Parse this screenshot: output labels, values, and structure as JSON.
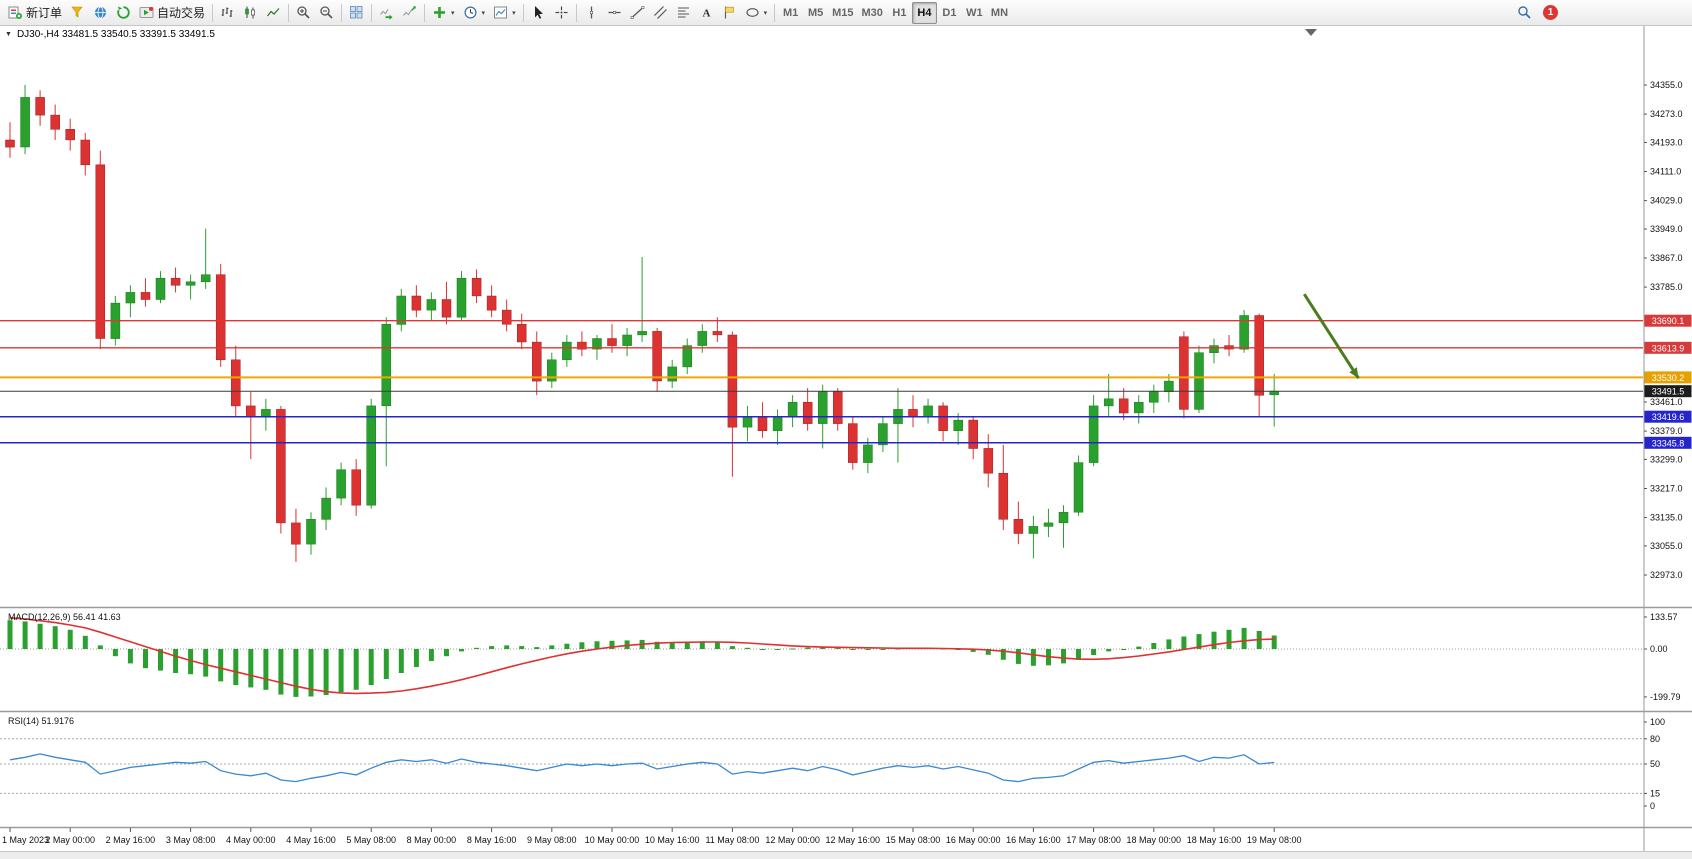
{
  "toolbar": {
    "groups": [
      {
        "items": [
          {
            "name": "new-order-button",
            "icon": "new-order",
            "label": "新订单"
          },
          {
            "name": "market-watch-button",
            "icon": "funnel"
          },
          {
            "name": "web-community-button",
            "icon": "globe"
          },
          {
            "name": "refresh-button",
            "icon": "refresh"
          },
          {
            "name": "autotrade-button",
            "icon": "autotrade",
            "label": "自动交易"
          }
        ]
      },
      {
        "items": [
          {
            "name": "bar-chart-button",
            "icon": "bars"
          },
          {
            "name": "candlestick-chart-button",
            "icon": "candles"
          },
          {
            "name": "line-chart-button",
            "icon": "line-chart"
          }
        ]
      },
      {
        "items": [
          {
            "name": "zoom-in-button",
            "icon": "zoom-in"
          },
          {
            "name": "zoom-out-button",
            "icon": "zoom-out"
          }
        ]
      },
      {
        "items": [
          {
            "name": "tile-windows-button",
            "icon": "tile-windows"
          }
        ]
      },
      {
        "items": [
          {
            "name": "auto-scroll-button",
            "icon": "auto-scroll"
          },
          {
            "name": "chart-shift-button",
            "icon": "chart-shift"
          }
        ]
      },
      {
        "items": [
          {
            "name": "indicators-button",
            "icon": "indicator-add",
            "dropdown": true
          },
          {
            "name": "periods-button",
            "icon": "clock",
            "dropdown": true
          },
          {
            "name": "templates-button",
            "icon": "template",
            "dropdown": true
          }
        ]
      },
      {
        "items": [
          {
            "name": "cursor-button",
            "icon": "cursor"
          },
          {
            "name": "crosshair-button",
            "icon": "crosshair"
          }
        ]
      },
      {
        "items": [
          {
            "name": "vertical-line-button",
            "icon": "vertical-line"
          },
          {
            "name": "horizontal-line-button",
            "icon": "horizontal-line"
          },
          {
            "name": "trendline-button",
            "icon": "trendline"
          },
          {
            "name": "channel-button",
            "icon": "channel"
          },
          {
            "name": "fibonacci-button",
            "icon": "fibonacci"
          },
          {
            "name": "text-button",
            "icon": "text"
          },
          {
            "name": "label-button",
            "icon": "label"
          },
          {
            "name": "shapes-button",
            "icon": "shapes",
            "dropdown": true
          }
        ]
      },
      {
        "items": [
          {
            "name": "timeframe-m1",
            "label": "M1",
            "tf": true
          },
          {
            "name": "timeframe-m5",
            "label": "M5",
            "tf": true
          },
          {
            "name": "timeframe-m15",
            "label": "M15",
            "tf": true
          },
          {
            "name": "timeframe-m30",
            "label": "M30",
            "tf": true
          },
          {
            "name": "timeframe-h1",
            "label": "H1",
            "tf": true
          },
          {
            "name": "timeframe-h4",
            "label": "H4",
            "tf": true,
            "active": true
          },
          {
            "name": "timeframe-d1",
            "label": "D1",
            "tf": true
          },
          {
            "name": "timeframe-w1",
            "label": "W1",
            "tf": true
          },
          {
            "name": "timeframe-mn",
            "label": "MN",
            "tf": true
          }
        ]
      }
    ],
    "notification_count": "1"
  },
  "chart": {
    "symbol_line": "DJ30-,H4 33481.5 33540.5 33391.5 33491.5"
  },
  "colors": {
    "candle_up": "#2aa12e",
    "candle_down": "#dc3232",
    "macd_histogram": "#2aa12e",
    "macd_signal": "#e03131",
    "rsi_line": "#3a87d2",
    "arrow": "#4a7d1e",
    "notification_badge": "#e03434"
  },
  "chart_data": {
    "type": "candlestick",
    "symbol": "DJ30-",
    "timeframe": "H4",
    "window_ohlc": {
      "open": 33481.5,
      "high": 33540.5,
      "low": 33391.5,
      "close": 33491.5
    },
    "price_axis_ticks": [
      "34355.0",
      "34273.0",
      "34193.0",
      "34111.0",
      "34029.0",
      "33949.0",
      "33867.0",
      "33785.0",
      "33461.0",
      "33379.0",
      "33299.0",
      "33217.0",
      "33135.0",
      "33055.0",
      "32973.0"
    ],
    "price_badges": [
      {
        "label": "33690.1",
        "price": 33690.1,
        "color": "#d63a3a"
      },
      {
        "label": "33613.9",
        "price": 33613.9,
        "color": "#d63a3a"
      },
      {
        "label": "33530.2",
        "price": 33530.2,
        "color": "#e8a000"
      },
      {
        "label": "33491.5",
        "price": 33491.5,
        "color": "#1c1c1c"
      },
      {
        "label": "33419.6",
        "price": 33419.6,
        "color": "#2525cc"
      },
      {
        "label": "33345.8",
        "price": 33345.8,
        "color": "#2525cc"
      }
    ],
    "hlines": [
      {
        "label": "33690.1",
        "price": 33690.1,
        "color": "#e23434",
        "width": 1.3
      },
      {
        "label": "33613.9",
        "price": 33613.9,
        "color": "#e23434",
        "width": 1.3
      },
      {
        "label": "33530.2",
        "price": 33530.2,
        "color": "#f0a800",
        "width": 2
      },
      {
        "label": "33491.5",
        "price": 33491.5,
        "color": "#3c3c3c",
        "width": 1
      },
      {
        "label": "33419.6",
        "price": 33419.6,
        "color": "#2525cc",
        "width": 1.5
      },
      {
        "label": "33345.8",
        "price": 33345.8,
        "color": "#2525cc",
        "width": 1.5
      }
    ],
    "time_labels": [
      "1 May 2023",
      "2 May 00:00",
      "2 May 16:00",
      "3 May 08:00",
      "4 May 00:00",
      "4 May 16:00",
      "5 May 08:00",
      "8 May 00:00",
      "8 May 16:00",
      "9 May 08:00",
      "10 May 00:00",
      "10 May 16:00",
      "11 May 08:00",
      "12 May 00:00",
      "12 May 16:00",
      "15 May 08:00",
      "16 May 00:00",
      "16 May 16:00",
      "17 May 08:00",
      "18 May 00:00",
      "18 May 16:00",
      "19 May 08:00"
    ],
    "candles": [
      [
        34200,
        34250,
        34150,
        34180
      ],
      [
        34180,
        34355,
        34160,
        34320
      ],
      [
        34320,
        34340,
        34240,
        34270
      ],
      [
        34270,
        34300,
        34200,
        34230
      ],
      [
        34230,
        34260,
        34170,
        34200
      ],
      [
        34200,
        34220,
        34100,
        34130
      ],
      [
        34130,
        34170,
        33610,
        33640
      ],
      [
        33640,
        33760,
        33620,
        33740
      ],
      [
        33740,
        33790,
        33700,
        33770
      ],
      [
        33770,
        33810,
        33730,
        33750
      ],
      [
        33750,
        33830,
        33740,
        33810
      ],
      [
        33810,
        33840,
        33770,
        33790
      ],
      [
        33790,
        33820,
        33750,
        33800
      ],
      [
        33800,
        33950,
        33780,
        33820
      ],
      [
        33820,
        33850,
        33560,
        33580
      ],
      [
        33580,
        33620,
        33420,
        33450
      ],
      [
        33450,
        33490,
        33300,
        33420
      ],
      [
        33420,
        33470,
        33380,
        33440
      ],
      [
        33440,
        33450,
        33090,
        33120
      ],
      [
        33120,
        33160,
        33010,
        33060
      ],
      [
        33060,
        33150,
        33030,
        33130
      ],
      [
        33130,
        33220,
        33100,
        33190
      ],
      [
        33190,
        33290,
        33170,
        33270
      ],
      [
        33270,
        33300,
        33140,
        33170
      ],
      [
        33170,
        33470,
        33160,
        33450
      ],
      [
        33450,
        33700,
        33280,
        33680
      ],
      [
        33680,
        33780,
        33660,
        33760
      ],
      [
        33760,
        33790,
        33700,
        33720
      ],
      [
        33720,
        33770,
        33690,
        33750
      ],
      [
        33750,
        33800,
        33680,
        33700
      ],
      [
        33700,
        33830,
        33690,
        33810
      ],
      [
        33810,
        33835,
        33740,
        33760
      ],
      [
        33760,
        33790,
        33700,
        33720
      ],
      [
        33720,
        33750,
        33660,
        33680
      ],
      [
        33680,
        33710,
        33610,
        33630
      ],
      [
        33630,
        33660,
        33480,
        33520
      ],
      [
        33520,
        33600,
        33500,
        33580
      ],
      [
        33580,
        33650,
        33560,
        33630
      ],
      [
        33630,
        33660,
        33590,
        33610
      ],
      [
        33610,
        33650,
        33580,
        33640
      ],
      [
        33640,
        33680,
        33600,
        33620
      ],
      [
        33620,
        33670,
        33590,
        33650
      ],
      [
        33650,
        33870,
        33630,
        33660
      ],
      [
        33660,
        33670,
        33490,
        33520
      ],
      [
        33520,
        33580,
        33500,
        33560
      ],
      [
        33560,
        33640,
        33540,
        33620
      ],
      [
        33620,
        33680,
        33600,
        33660
      ],
      [
        33660,
        33700,
        33630,
        33650
      ],
      [
        33650,
        33660,
        33250,
        33390
      ],
      [
        33390,
        33450,
        33350,
        33420
      ],
      [
        33420,
        33460,
        33360,
        33380
      ],
      [
        33380,
        33440,
        33340,
        33420
      ],
      [
        33420,
        33480,
        33390,
        33460
      ],
      [
        33460,
        33500,
        33380,
        33400
      ],
      [
        33400,
        33510,
        33330,
        33490
      ],
      [
        33490,
        33500,
        33380,
        33400
      ],
      [
        33400,
        33420,
        33270,
        33290
      ],
      [
        33290,
        33360,
        33260,
        33340
      ],
      [
        33340,
        33420,
        33320,
        33400
      ],
      [
        33400,
        33500,
        33290,
        33440
      ],
      [
        33440,
        33480,
        33390,
        33420
      ],
      [
        33420,
        33470,
        33400,
        33450
      ],
      [
        33450,
        33460,
        33350,
        33380
      ],
      [
        33380,
        33430,
        33340,
        33410
      ],
      [
        33410,
        33420,
        33300,
        33330
      ],
      [
        33330,
        33370,
        33220,
        33260
      ],
      [
        33260,
        33340,
        33100,
        33130
      ],
      [
        33130,
        33180,
        33060,
        33090
      ],
      [
        33090,
        33140,
        33020,
        33110
      ],
      [
        33110,
        33160,
        33080,
        33120
      ],
      [
        33120,
        33170,
        33050,
        33150
      ],
      [
        33150,
        33310,
        33140,
        33290
      ],
      [
        33290,
        33480,
        33280,
        33450
      ],
      [
        33450,
        33540,
        33420,
        33470
      ],
      [
        33470,
        33500,
        33410,
        33430
      ],
      [
        33430,
        33480,
        33400,
        33460
      ],
      [
        33460,
        33510,
        33430,
        33490
      ],
      [
        33490,
        33540,
        33460,
        33520
      ],
      [
        33645,
        33660,
        33415,
        33440
      ],
      [
        33440,
        33620,
        33430,
        33600
      ],
      [
        33600,
        33640,
        33570,
        33620
      ],
      [
        33620,
        33650,
        33590,
        33610
      ],
      [
        33610,
        33720,
        33600,
        33705
      ],
      [
        33705,
        33710,
        33420,
        33480
      ],
      [
        33481.5,
        33540.5,
        33391.5,
        33491.5
      ]
    ],
    "macd": {
      "name": "MACD(12,26,9)",
      "values": "56.41 41.63",
      "axis_ticks": [
        "133.57",
        "0.00",
        "-199.79"
      ],
      "histogram": [
        120,
        115,
        105,
        95,
        80,
        55,
        15,
        -30,
        -60,
        -80,
        -90,
        -100,
        -105,
        -115,
        -135,
        -150,
        -160,
        -170,
        -190,
        -199.79,
        -198,
        -192,
        -180,
        -170,
        -150,
        -125,
        -100,
        -75,
        -50,
        -30,
        -10,
        5,
        12,
        15,
        12,
        8,
        15,
        22,
        28,
        32,
        34,
        36,
        38,
        30,
        28,
        30,
        32,
        30,
        12,
        5,
        0,
        -2,
        2,
        6,
        10,
        8,
        0,
        -4,
        -3,
        2,
        4,
        5,
        2,
        -4,
        -12,
        -24,
        -45,
        -62,
        -70,
        -68,
        -60,
        -45,
        -25,
        -10,
        0,
        10,
        25,
        40,
        52,
        62,
        72,
        80,
        88,
        75,
        56.41
      ],
      "signal": [
        130,
        125,
        118,
        110,
        100,
        88,
        70,
        50,
        30,
        10,
        -10,
        -30,
        -48,
        -65,
        -80,
        -95,
        -110,
        -125,
        -140,
        -155,
        -168,
        -178,
        -183,
        -185,
        -184,
        -181,
        -175,
        -166,
        -155,
        -142,
        -128,
        -112,
        -95,
        -78,
        -62,
        -47,
        -33,
        -20,
        -9,
        0,
        8,
        15,
        20,
        24,
        27,
        28,
        29,
        29,
        28,
        25,
        21,
        17,
        13,
        10,
        8,
        7,
        6,
        5,
        4,
        3,
        3,
        3,
        2,
        1,
        -1,
        -4,
        -9,
        -16,
        -24,
        -32,
        -38,
        -42,
        -43,
        -41,
        -36,
        -29,
        -21,
        -12,
        -2,
        8,
        18,
        27,
        34,
        39,
        41.63
      ]
    },
    "rsi": {
      "name": "RSI(14)",
      "value": "51.9176",
      "axis_ticks": [
        "100",
        "80",
        "50",
        "15",
        "0"
      ],
      "levels": [
        80,
        50,
        15
      ],
      "values": [
        55,
        58,
        62,
        58,
        55,
        52,
        38,
        42,
        46,
        48,
        50,
        52,
        51,
        53,
        42,
        38,
        36,
        39,
        31,
        29,
        33,
        36,
        40,
        37,
        45,
        52,
        55,
        53,
        55,
        51,
        56,
        52,
        50,
        48,
        45,
        42,
        46,
        50,
        48,
        50,
        48,
        50,
        51,
        44,
        47,
        50,
        52,
        50,
        38,
        41,
        39,
        42,
        45,
        42,
        47,
        43,
        37,
        41,
        45,
        48,
        46,
        48,
        44,
        47,
        43,
        39,
        31,
        29,
        33,
        34,
        36,
        44,
        52,
        54,
        51,
        53,
        55,
        57,
        60,
        53,
        58,
        57,
        61,
        50,
        51.9176
      ]
    },
    "arrow": {
      "from_bar": 86,
      "from_price": 33765,
      "to_bar": 89.6,
      "to_price": 33528
    }
  }
}
